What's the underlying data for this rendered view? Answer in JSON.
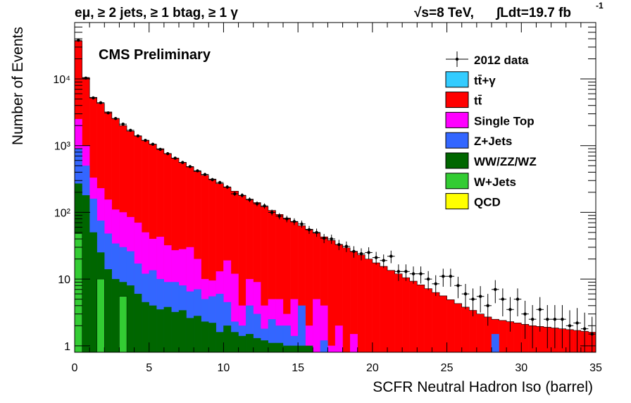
{
  "chart_data": {
    "type": "bar",
    "stacked": true,
    "title_left": "eμ, ≥ 2 jets, ≥ 1 btag, ≥ 1 γ",
    "title_right_energy": "√s=8 TeV,",
    "title_right_lumi": "∫Ldt=19.7 fb",
    "title_right_lumi_sup": "-1",
    "watermark": "CMS Preliminary",
    "xlabel": "SCFR Neutral Hadron Iso (barrel)",
    "ylabel": "Number of Events",
    "xlim": [
      0,
      35
    ],
    "ylim": [
      0.8,
      70000
    ],
    "yscale": "log",
    "bin_width": 0.5,
    "x_ticks": [
      0,
      5,
      10,
      15,
      20,
      25,
      30,
      35
    ],
    "x_tick_labels": [
      "0",
      "5",
      "10",
      "15",
      "20",
      "25",
      "30",
      "35"
    ],
    "y_ticks": [
      1,
      10,
      100,
      1000,
      10000
    ],
    "y_tick_labels": [
      "1",
      "10",
      "10²",
      "10³",
      "10⁴"
    ],
    "legend_position": "top-right",
    "legend": [
      {
        "label": "2012 data",
        "kind": "data",
        "color": "#000000"
      },
      {
        "label": "tt̄+γ",
        "kind": "fill",
        "color": "#33CCFF"
      },
      {
        "label": "tt̄",
        "kind": "fill",
        "color": "#FF0000"
      },
      {
        "label": "Single Top",
        "kind": "fill",
        "color": "#FF00FF"
      },
      {
        "label": "Z+Jets",
        "kind": "fill",
        "color": "#3366FF"
      },
      {
        "label": "WW/ZZ/WZ",
        "kind": "fill",
        "color": "#006600"
      },
      {
        "label": "W+Jets",
        "kind": "fill",
        "color": "#33CC33"
      },
      {
        "label": "QCD",
        "kind": "fill",
        "color": "#FFFF00"
      }
    ],
    "stack_totals": [
      37000,
      10500,
      5300,
      4300,
      3200,
      2550,
      2000,
      1650,
      1400,
      1200,
      1050,
      900,
      760,
      650,
      560,
      480,
      410,
      360,
      315,
      270,
      238,
      208,
      180,
      158,
      140,
      122,
      107,
      93,
      82,
      72,
      63,
      56,
      49,
      43,
      38,
      33,
      29.5,
      26,
      23,
      20,
      17.5,
      15.5,
      13.5,
      12,
      10.5,
      9.3,
      8.2,
      7.2,
      6.3,
      5.6,
      4.9,
      4.3,
      3.8,
      3.4,
      3.0,
      2.7
    ],
    "stack_totals_tail": [
      2.5,
      2.4,
      2.3,
      2.2,
      2.1,
      2.0,
      1.95,
      1.9,
      1.85,
      1.8,
      1.75,
      1.7,
      1.65,
      1.6
    ],
    "single_top_top": [
      2500,
      1000,
      330,
      230,
      155,
      110,
      100,
      85,
      70,
      50,
      40,
      43,
      32,
      27,
      28,
      30,
      20,
      10,
      9.5,
      13,
      19,
      12,
      4,
      10,
      9,
      4,
      5,
      5,
      3,
      5,
      3,
      2,
      5,
      4,
      1,
      2,
      0,
      1.5,
      0,
      0.5,
      0,
      0,
      0,
      0,
      0,
      0,
      0,
      0,
      0,
      0,
      0,
      0,
      0,
      0,
      0,
      0,
      0,
      0,
      0,
      0,
      0,
      0,
      0,
      0,
      0,
      0,
      0,
      0,
      0,
      0
    ],
    "z_jets_top": [
      900,
      500,
      160,
      75,
      48,
      34,
      30,
      26,
      17,
      12,
      13.5,
      10,
      9,
      9,
      8,
      6.5,
      7,
      5,
      5.5,
      6,
      4.5,
      2.3,
      2,
      4,
      3,
      1.8,
      2.5,
      2,
      2,
      1.4,
      4,
      0,
      0,
      1.2,
      0,
      0.5,
      0,
      0,
      0,
      0,
      0,
      0,
      0,
      0,
      0,
      0,
      0,
      0,
      0,
      0,
      0,
      0,
      0,
      0,
      0,
      0,
      1.5,
      0,
      0,
      0,
      0,
      0,
      0,
      0,
      0,
      0,
      0,
      0
    ],
    "diboson_top": [
      270,
      180,
      50,
      25,
      14,
      10,
      9,
      8,
      6,
      4.5,
      4,
      3.5,
      3.8,
      3.2,
      3.4,
      2.6,
      2.8,
      2.3,
      2.2,
      1.6,
      2.0,
      1.6,
      1.4,
      1.5,
      1.3,
      1.2,
      1.1,
      1.1,
      1.0,
      1.0,
      1.0,
      1.0,
      0,
      0,
      0,
      0,
      0,
      0,
      0,
      0,
      0,
      0,
      0,
      0,
      0,
      0,
      0,
      0,
      0,
      0,
      0,
      0,
      0,
      0,
      0,
      0,
      0,
      0,
      0,
      0,
      0,
      0,
      0,
      0,
      0,
      0,
      0,
      0
    ],
    "w_jets_top": [
      48,
      0,
      0,
      0,
      0,
      0,
      0,
      0,
      0,
      0,
      0,
      0,
      0,
      0,
      0,
      0,
      0,
      0,
      0,
      0,
      0,
      0,
      0,
      0,
      0,
      0,
      0,
      0,
      0,
      0,
      0,
      0,
      0,
      0,
      0,
      0,
      0,
      0,
      0,
      0,
      0,
      0,
      0,
      0,
      0,
      0,
      0,
      0,
      0,
      0,
      0,
      0,
      0,
      0,
      0,
      0,
      0,
      0,
      0,
      0,
      0,
      0,
      0,
      0,
      0,
      0,
      0,
      0,
      0,
      0
    ],
    "w_jets_bins": [
      [
        0.0,
        48
      ],
      [
        1.0,
        3.5
      ],
      [
        1.5,
        0
      ],
      [
        2.0,
        0
      ],
      [
        1.5,
        10
      ],
      [
        3.0,
        5.5
      ],
      [
        4.5,
        0
      ],
      [
        0,
        0
      ],
      [
        0,
        0
      ]
    ],
    "data_points": [
      [
        0.25,
        38000
      ],
      [
        0.75,
        10300
      ],
      [
        1.25,
        5200
      ],
      [
        1.75,
        4400
      ],
      [
        2.25,
        3100
      ],
      [
        2.75,
        2550
      ],
      [
        3.25,
        2100
      ],
      [
        3.75,
        1700
      ],
      [
        4.25,
        1400
      ],
      [
        4.75,
        1200
      ],
      [
        5.25,
        1050
      ],
      [
        5.75,
        880
      ],
      [
        6.25,
        760
      ],
      [
        6.75,
        650
      ],
      [
        7.25,
        560
      ],
      [
        7.75,
        485
      ],
      [
        8.25,
        420
      ],
      [
        8.75,
        370
      ],
      [
        9.25,
        310
      ],
      [
        9.75,
        280
      ],
      [
        10.25,
        240
      ],
      [
        10.75,
        190
      ],
      [
        11.25,
        180
      ],
      [
        11.75,
        155
      ],
      [
        12.25,
        135
      ],
      [
        12.75,
        125
      ],
      [
        13.25,
        100
      ],
      [
        13.75,
        88
      ],
      [
        14.25,
        80
      ],
      [
        14.75,
        73
      ],
      [
        15.25,
        67
      ],
      [
        15.75,
        55
      ],
      [
        16.25,
        50
      ],
      [
        16.75,
        41
      ],
      [
        17.25,
        40
      ],
      [
        17.75,
        33
      ],
      [
        18.25,
        31
      ],
      [
        18.75,
        26
      ],
      [
        19.25,
        24
      ],
      [
        19.75,
        25
      ],
      [
        20.25,
        21
      ],
      [
        20.75,
        19
      ],
      [
        21.25,
        22
      ],
      [
        21.75,
        13
      ],
      [
        22.25,
        13
      ],
      [
        22.75,
        12
      ],
      [
        23.25,
        12
      ],
      [
        23.75,
        10
      ],
      [
        24.25,
        8.5
      ],
      [
        24.75,
        11
      ],
      [
        25.25,
        11
      ],
      [
        25.75,
        8
      ],
      [
        26.25,
        6
      ],
      [
        26.75,
        5
      ],
      [
        27.25,
        5.5
      ],
      [
        27.75,
        4
      ],
      [
        28.25,
        7
      ],
      [
        28.75,
        5
      ],
      [
        29.25,
        3.5
      ],
      [
        29.75,
        5
      ],
      [
        30.25,
        3
      ],
      [
        30.75,
        2.5
      ],
      [
        31.25,
        3.5
      ],
      [
        31.75,
        2.5
      ],
      [
        32.25,
        2.5
      ],
      [
        32.75,
        2.5
      ],
      [
        33.25,
        2
      ],
      [
        33.75,
        2.2
      ],
      [
        34.25,
        1.8
      ],
      [
        34.75,
        1.5
      ]
    ]
  }
}
